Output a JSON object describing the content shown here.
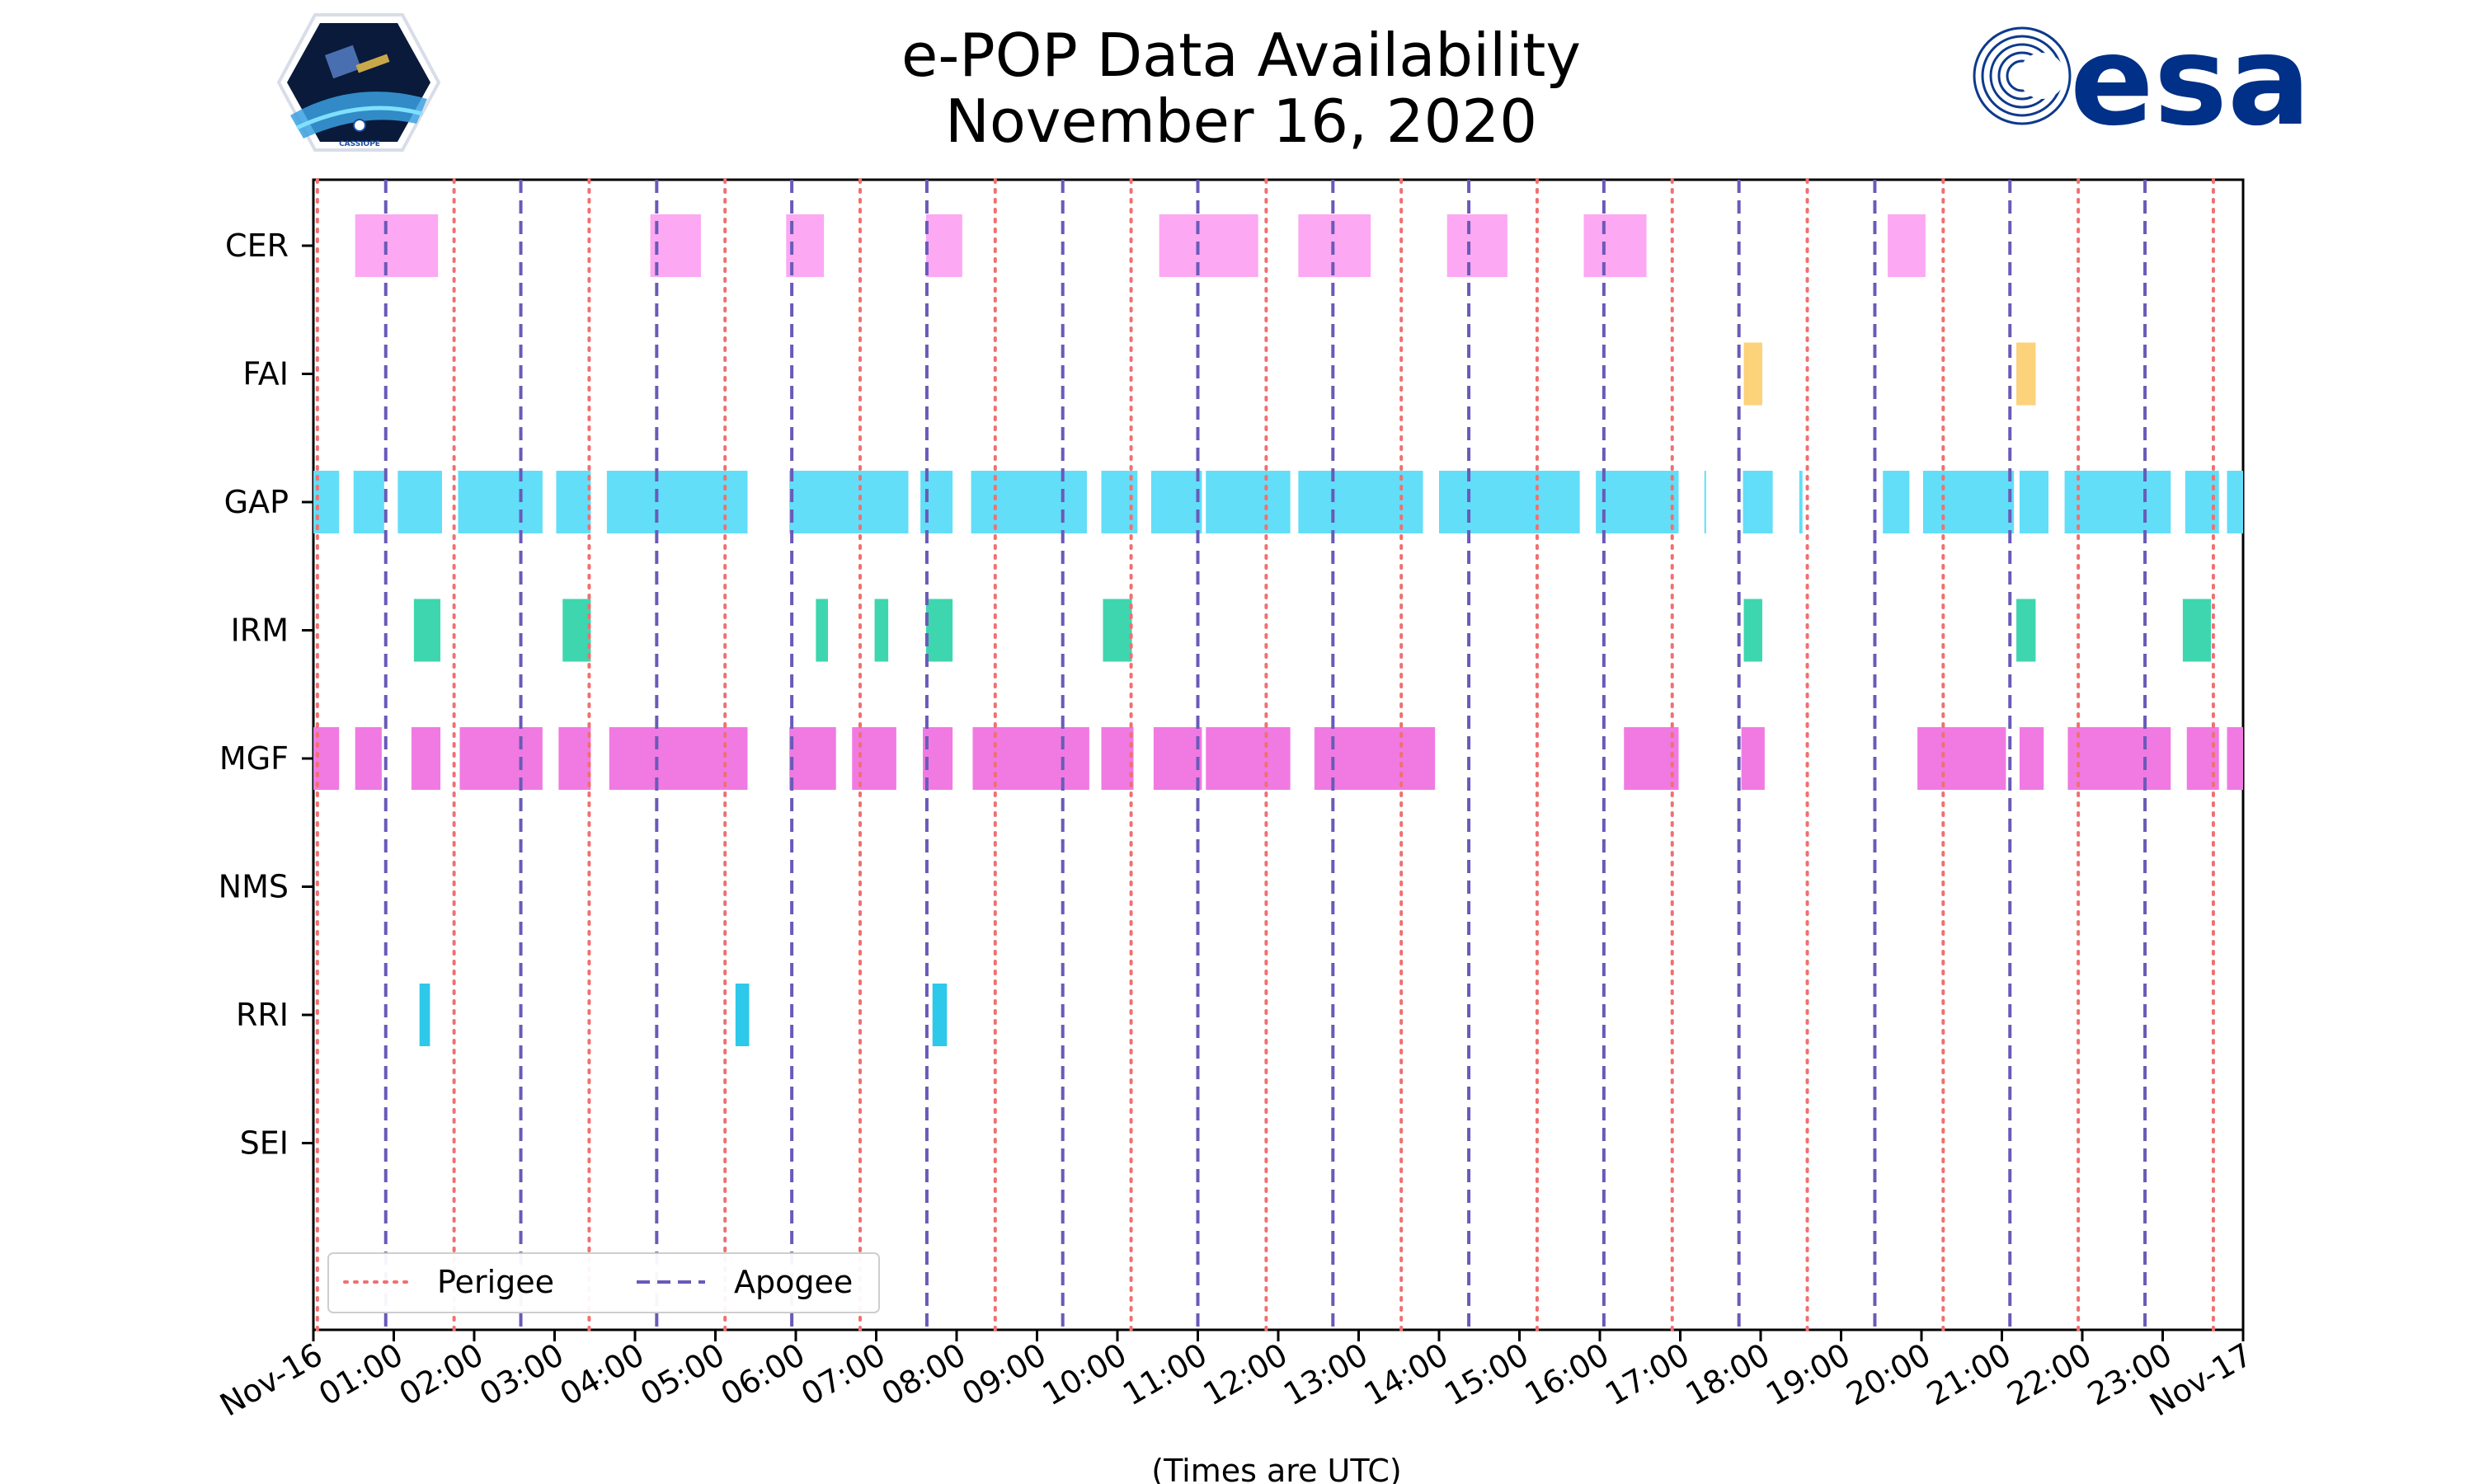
{
  "title_line1": "e-POP Data Availability",
  "title_line2": "November 16, 2020",
  "logos": {
    "left_name": "CASSIOPE",
    "right_name": "esa"
  },
  "legend": {
    "perigee_label": "Perigee",
    "apogee_label": "Apogee",
    "location": "lower-left"
  },
  "colors": {
    "perigee": "#f07070",
    "apogee": "#6a5ab8",
    "CER": "#fca8f2",
    "FAI": "#fcd27a",
    "GAP": "#62def8",
    "IRM": "#3ed6ae",
    "MGF": "#f07ae2",
    "RRI": "#2ec8ea"
  },
  "chart_data": {
    "type": "timeline",
    "title": "e-POP Data Availability\nNovember 16, 2020",
    "xlabel": "(Times are UTC)",
    "ylabel": "",
    "x_unit": "hours UTC since Nov-16 00:00",
    "xlim": [
      0,
      24
    ],
    "grid": false,
    "x_tick_labels": [
      "Nov-16",
      "01:00",
      "02:00",
      "03:00",
      "04:00",
      "05:00",
      "06:00",
      "07:00",
      "08:00",
      "09:00",
      "10:00",
      "11:00",
      "12:00",
      "13:00",
      "14:00",
      "15:00",
      "16:00",
      "17:00",
      "18:00",
      "19:00",
      "20:00",
      "21:00",
      "22:00",
      "23:00",
      "Nov-17"
    ],
    "instruments": [
      "CER",
      "FAI",
      "GAP",
      "IRM",
      "MGF",
      "NMS",
      "RRI",
      "SEI"
    ],
    "series": [
      {
        "name": "CER",
        "intervals": [
          [
            0.52,
            1.55
          ],
          [
            4.19,
            4.82
          ],
          [
            5.88,
            6.35
          ],
          [
            7.62,
            8.07
          ],
          [
            10.52,
            11.75
          ],
          [
            12.25,
            13.15
          ],
          [
            14.1,
            14.85
          ],
          [
            15.8,
            16.58
          ],
          [
            19.58,
            20.05
          ]
        ]
      },
      {
        "name": "FAI",
        "intervals": [
          [
            17.79,
            18.02
          ],
          [
            21.18,
            21.42
          ]
        ]
      },
      {
        "name": "GAP",
        "intervals": [
          [
            0.0,
            0.32
          ],
          [
            0.5,
            0.88
          ],
          [
            1.05,
            1.6
          ],
          [
            1.8,
            2.85
          ],
          [
            3.02,
            3.45
          ],
          [
            3.65,
            5.4
          ],
          [
            5.92,
            7.4
          ],
          [
            7.55,
            7.95
          ],
          [
            8.18,
            9.62
          ],
          [
            9.8,
            10.25
          ],
          [
            10.42,
            11.05
          ],
          [
            11.1,
            12.15
          ],
          [
            12.25,
            13.8
          ],
          [
            14.0,
            15.75
          ],
          [
            15.95,
            16.98
          ],
          [
            17.3,
            17.32
          ],
          [
            17.78,
            18.15
          ],
          [
            18.48,
            18.52
          ],
          [
            19.52,
            19.85
          ],
          [
            20.02,
            21.15
          ],
          [
            21.22,
            21.58
          ],
          [
            21.78,
            23.1
          ],
          [
            23.28,
            23.7
          ],
          [
            23.8,
            24.0
          ]
        ]
      },
      {
        "name": "IRM",
        "intervals": [
          [
            1.25,
            1.58
          ],
          [
            3.1,
            3.45
          ],
          [
            6.25,
            6.4
          ],
          [
            6.98,
            7.15
          ],
          [
            7.62,
            7.95
          ],
          [
            9.82,
            10.18
          ],
          [
            17.79,
            18.02
          ],
          [
            21.18,
            21.42
          ],
          [
            23.25,
            23.6
          ]
        ]
      },
      {
        "name": "MGF",
        "intervals": [
          [
            0.0,
            0.32
          ],
          [
            0.52,
            0.85
          ],
          [
            1.22,
            1.58
          ],
          [
            1.82,
            2.85
          ],
          [
            3.05,
            3.45
          ],
          [
            3.68,
            5.4
          ],
          [
            5.92,
            6.5
          ],
          [
            6.7,
            7.25
          ],
          [
            7.58,
            7.95
          ],
          [
            8.2,
            9.65
          ],
          [
            9.8,
            10.2
          ],
          [
            10.45,
            11.05
          ],
          [
            11.1,
            12.15
          ],
          [
            12.45,
            13.95
          ],
          [
            16.3,
            16.98
          ],
          [
            17.76,
            18.05
          ],
          [
            19.95,
            21.05
          ],
          [
            21.22,
            21.52
          ],
          [
            21.82,
            23.1
          ],
          [
            23.3,
            23.7
          ],
          [
            23.8,
            24.0
          ]
        ]
      },
      {
        "name": "NMS",
        "intervals": []
      },
      {
        "name": "RRI",
        "intervals": [
          [
            1.32,
            1.45
          ],
          [
            5.25,
            5.42
          ],
          [
            7.7,
            7.88
          ]
        ]
      },
      {
        "name": "SEI",
        "intervals": []
      }
    ],
    "perigee_times": [
      0.05,
      1.75,
      3.43,
      5.12,
      6.8,
      8.48,
      10.17,
      11.85,
      13.53,
      15.22,
      16.9,
      18.58,
      20.27,
      21.95,
      23.63
    ],
    "apogee_times": [
      0.9,
      2.58,
      4.27,
      5.95,
      7.63,
      9.32,
      11.0,
      12.68,
      14.37,
      16.05,
      17.73,
      19.42,
      21.1,
      22.78
    ]
  }
}
